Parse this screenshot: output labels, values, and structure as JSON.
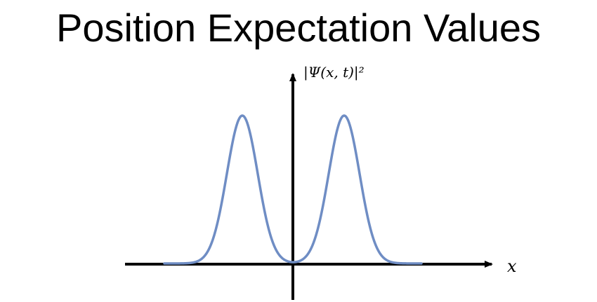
{
  "slide": {
    "title": "Position Expectation Values"
  },
  "plot": {
    "y_axis_label": "|Ψ(x, t)|²",
    "x_axis_label": "x",
    "curve_color": "#6f8dc4",
    "axis_color": "#000000",
    "curve": "two equal Gaussian peaks placed symmetrically on either side of the vertical axis"
  }
}
